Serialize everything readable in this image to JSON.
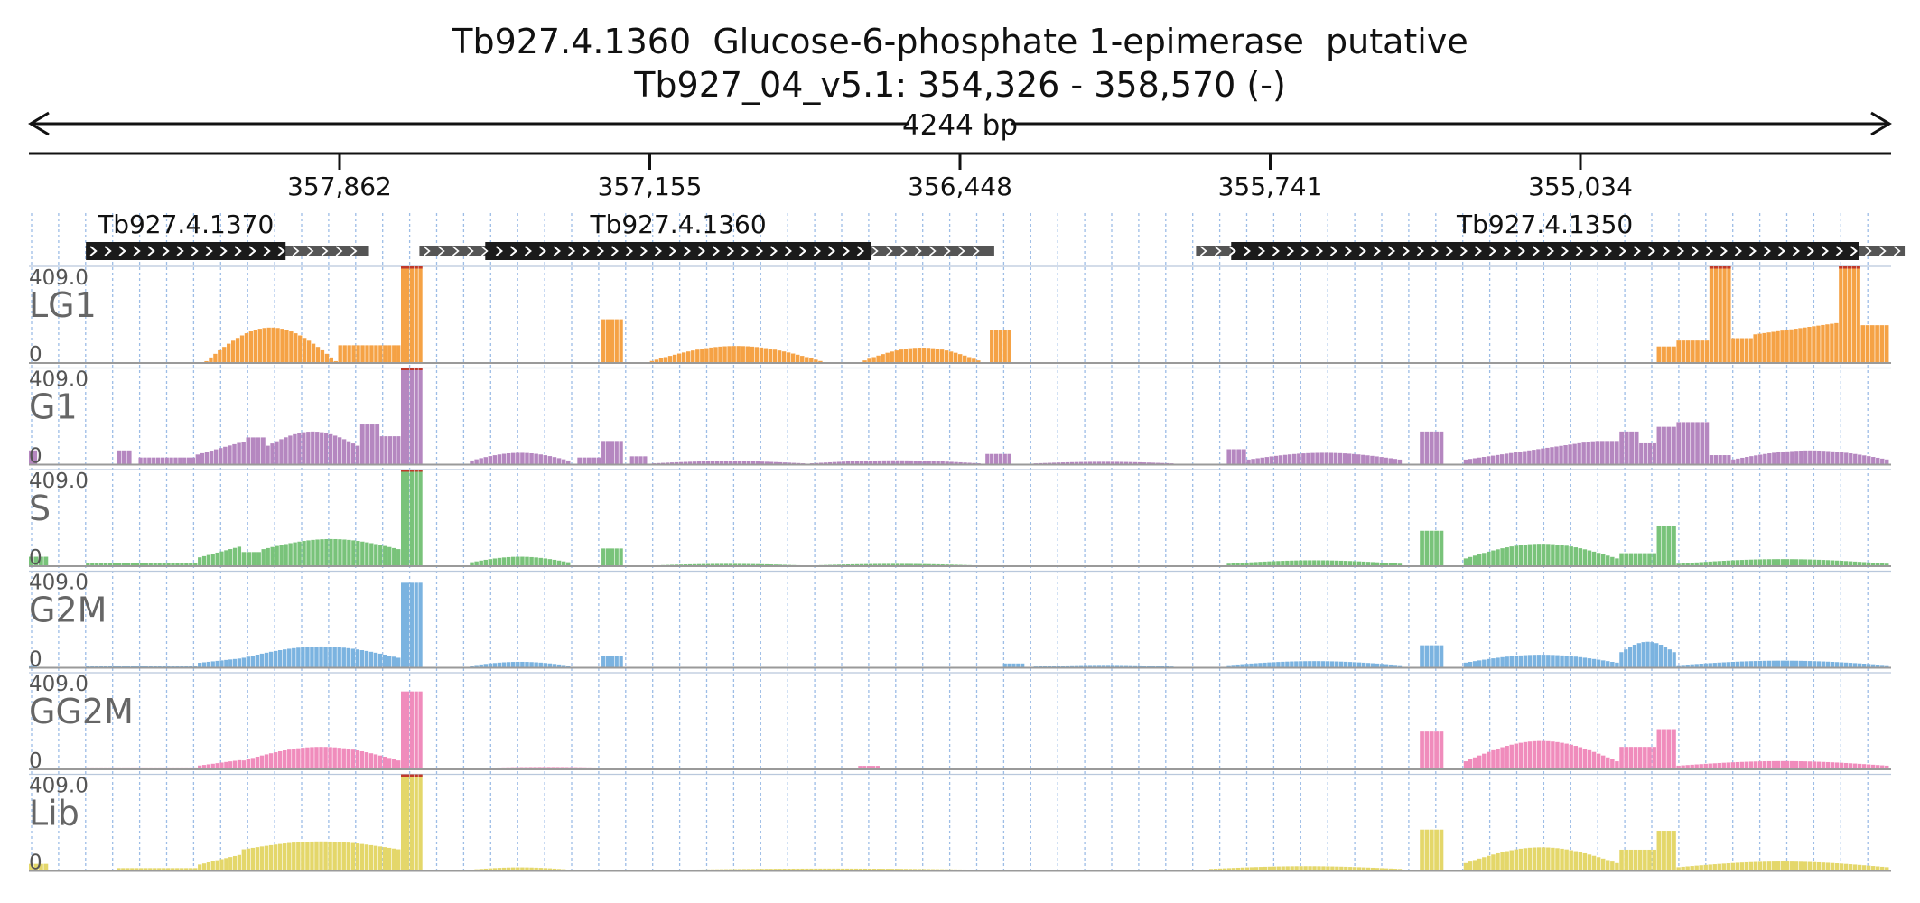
{
  "header": {
    "title": "Tb927.4.1360  Glucose-6-phosphate 1-epimerase  putative",
    "locus": "Tb927_04_v5.1: 354,326 - 358,570 (-)",
    "span_label": "4244 bp"
  },
  "ruler": {
    "ticks": [
      "357,862",
      "357,155",
      "356,448",
      "355,741",
      "355,034"
    ]
  },
  "genes": [
    {
      "name": "Tb927.4.1370",
      "utr_start": 358440,
      "cds_start": 358440,
      "cds_end": 357985,
      "utr_end": 357795
    },
    {
      "name": "Tb927.4.1360",
      "utr_start": 357680,
      "cds_start": 357530,
      "cds_end": 356650,
      "utr_end": 356370
    },
    {
      "name": "Tb927.4.1350",
      "utr_start": 355910,
      "cds_start": 355830,
      "cds_end": 354400,
      "utr_end": 354295
    }
  ],
  "chart_data": {
    "type": "bar",
    "x_range": [
      358570,
      354326
    ],
    "x_unit": "bp (reverse strand)",
    "y_max_label": "409.0",
    "y_min_label": "0",
    "ylim": [
      0,
      409
    ],
    "tracks": [
      {
        "name": "LG1",
        "color": "#f5a245",
        "segments": [
          {
            "x": [
              358170,
              357865
            ],
            "shape": "hump",
            "min": 0,
            "peak": 150
          },
          {
            "x": [
              357865,
              357722
            ],
            "shape": "flat",
            "value": 75
          },
          {
            "x": [
              357722,
              357672
            ],
            "shape": "flat",
            "value": 409
          },
          {
            "x": [
              357265,
              357215
            ],
            "shape": "flat",
            "value": 185
          },
          {
            "x": [
              357165,
              356750
            ],
            "shape": "hump",
            "min": 0,
            "peak": 72
          },
          {
            "x": [
              356680,
              356390
            ],
            "shape": "hump",
            "min": 0,
            "peak": 65
          },
          {
            "x": [
              356380,
              356330
            ],
            "shape": "flat",
            "value": 140
          },
          {
            "x": [
              354860,
              354815
            ],
            "shape": "flat",
            "value": 70
          },
          {
            "x": [
              354815,
              354740
            ],
            "shape": "flat",
            "value": 95
          },
          {
            "x": [
              354740,
              354690
            ],
            "shape": "flat",
            "value": 409
          },
          {
            "x": [
              354690,
              354640
            ],
            "shape": "flat",
            "value": 105
          },
          {
            "x": [
              354640,
              354445
            ],
            "shape": "ramp",
            "from": 120,
            "to": 170
          },
          {
            "x": [
              354445,
              354395
            ],
            "shape": "flat",
            "value": 409
          },
          {
            "x": [
              354395,
              354330
            ],
            "shape": "flat",
            "value": 160
          }
        ]
      },
      {
        "name": "G1",
        "color": "#b587c0",
        "segments": [
          {
            "x": [
              358570,
              358550
            ],
            "shape": "flat",
            "value": 60
          },
          {
            "x": [
              358370,
              358335
            ],
            "shape": "flat",
            "value": 60
          },
          {
            "x": [
              358320,
              358190
            ],
            "shape": "flat",
            "value": 30
          },
          {
            "x": [
              358190,
              358075
            ],
            "shape": "ramp",
            "from": 40,
            "to": 100
          },
          {
            "x": [
              358075,
              358030
            ],
            "shape": "flat",
            "value": 115
          },
          {
            "x": [
              358030,
              357815
            ],
            "shape": "hump",
            "min": 75,
            "peak": 140
          },
          {
            "x": [
              357815,
              357770
            ],
            "shape": "flat",
            "value": 170
          },
          {
            "x": [
              357770,
              357722
            ],
            "shape": "flat",
            "value": 120
          },
          {
            "x": [
              357722,
              357672
            ],
            "shape": "flat",
            "value": 409
          },
          {
            "x": [
              357565,
              357335
            ],
            "shape": "hump",
            "min": 15,
            "peak": 50
          },
          {
            "x": [
              357320,
              357265
            ],
            "shape": "flat",
            "value": 30
          },
          {
            "x": [
              357265,
              357215
            ],
            "shape": "flat",
            "value": 100
          },
          {
            "x": [
              357200,
              357160
            ],
            "shape": "flat",
            "value": 35
          },
          {
            "x": [
              357150,
              356800
            ],
            "shape": "hump",
            "min": 5,
            "peak": 15
          },
          {
            "x": [
              356790,
              356400
            ],
            "shape": "hump",
            "min": 5,
            "peak": 18
          },
          {
            "x": [
              356390,
              356330
            ],
            "shape": "flat",
            "value": 45
          },
          {
            "x": [
              356280,
              355960
            ],
            "shape": "hump",
            "min": 5,
            "peak": 12
          },
          {
            "x": [
              355840,
              355795
            ],
            "shape": "flat",
            "value": 65
          },
          {
            "x": [
              355795,
              355440
            ],
            "shape": "hump",
            "min": 20,
            "peak": 50
          },
          {
            "x": [
              355400,
              355345
            ],
            "shape": "flat",
            "value": 140
          },
          {
            "x": [
              355300,
              355000
            ],
            "shape": "ramp",
            "from": 20,
            "to": 100
          },
          {
            "x": [
              355000,
              354945
            ],
            "shape": "flat",
            "value": 100
          },
          {
            "x": [
              354945,
              354900
            ],
            "shape": "flat",
            "value": 140
          },
          {
            "x": [
              354900,
              354860
            ],
            "shape": "flat",
            "value": 90
          },
          {
            "x": [
              354860,
              354815
            ],
            "shape": "flat",
            "value": 160
          },
          {
            "x": [
              354815,
              354740
            ],
            "shape": "flat",
            "value": 180
          },
          {
            "x": [
              354740,
              354690
            ],
            "shape": "flat",
            "value": 40
          },
          {
            "x": [
              354690,
              354330
            ],
            "shape": "hump",
            "min": 20,
            "peak": 60
          }
        ]
      },
      {
        "name": "S",
        "color": "#79c37a",
        "segments": [
          {
            "x": [
              358570,
              358525
            ],
            "shape": "flat",
            "value": 40
          },
          {
            "x": [
              358440,
              358185
            ],
            "shape": "flat",
            "value": 12
          },
          {
            "x": [
              358185,
              358085
            ],
            "shape": "ramp",
            "from": 35,
            "to": 85
          },
          {
            "x": [
              358085,
              358040
            ],
            "shape": "flat",
            "value": 60
          },
          {
            "x": [
              358040,
              357722
            ],
            "shape": "hump",
            "min": 70,
            "peak": 115
          },
          {
            "x": [
              357722,
              357672
            ],
            "shape": "flat",
            "value": 409
          },
          {
            "x": [
              357565,
              357335
            ],
            "shape": "hump",
            "min": 15,
            "peak": 40
          },
          {
            "x": [
              357265,
              357215
            ],
            "shape": "flat",
            "value": 75
          },
          {
            "x": [
              357150,
              356800
            ],
            "shape": "hump",
            "min": 3,
            "peak": 10
          },
          {
            "x": [
              356790,
              356400
            ],
            "shape": "hump",
            "min": 3,
            "peak": 10
          },
          {
            "x": [
              355840,
              355440
            ],
            "shape": "hump",
            "min": 10,
            "peak": 25
          },
          {
            "x": [
              355400,
              355345
            ],
            "shape": "flat",
            "value": 150
          },
          {
            "x": [
              355300,
              354945
            ],
            "shape": "hump",
            "min": 30,
            "peak": 95
          },
          {
            "x": [
              354945,
              354860
            ],
            "shape": "flat",
            "value": 55
          },
          {
            "x": [
              354860,
              354815
            ],
            "shape": "flat",
            "value": 170
          },
          {
            "x": [
              354815,
              354330
            ],
            "shape": "hump",
            "min": 10,
            "peak": 30
          }
        ]
      },
      {
        "name": "G2M",
        "color": "#7bb3e0",
        "segments": [
          {
            "x": [
              358570,
              358550
            ],
            "shape": "flat",
            "value": 10
          },
          {
            "x": [
              358440,
              358185
            ],
            "shape": "flat",
            "value": 8
          },
          {
            "x": [
              358185,
              358085
            ],
            "shape": "ramp",
            "from": 20,
            "to": 40
          },
          {
            "x": [
              358085,
              357722
            ],
            "shape": "hump",
            "min": 40,
            "peak": 90
          },
          {
            "x": [
              357722,
              357672
            ],
            "shape": "flat",
            "value": 360
          },
          {
            "x": [
              357565,
              357335
            ],
            "shape": "hump",
            "min": 8,
            "peak": 25
          },
          {
            "x": [
              357265,
              357215
            ],
            "shape": "flat",
            "value": 50
          },
          {
            "x": [
              356350,
              356300
            ],
            "shape": "flat",
            "value": 18
          },
          {
            "x": [
              356280,
              355960
            ],
            "shape": "hump",
            "min": 5,
            "peak": 12
          },
          {
            "x": [
              355840,
              355440
            ],
            "shape": "hump",
            "min": 10,
            "peak": 28
          },
          {
            "x": [
              355400,
              355345
            ],
            "shape": "flat",
            "value": 95
          },
          {
            "x": [
              355300,
              354945
            ],
            "shape": "hump",
            "min": 20,
            "peak": 55
          },
          {
            "x": [
              354945,
              354815
            ],
            "shape": "hump",
            "min": 60,
            "peak": 110
          },
          {
            "x": [
              354815,
              354330
            ],
            "shape": "hump",
            "min": 10,
            "peak": 30
          }
        ]
      },
      {
        "name": "GG2M",
        "color": "#f08cbc",
        "segments": [
          {
            "x": [
              358570,
              358550
            ],
            "shape": "flat",
            "value": 5
          },
          {
            "x": [
              358440,
              358185
            ],
            "shape": "flat",
            "value": 8
          },
          {
            "x": [
              358185,
              358085
            ],
            "shape": "ramp",
            "from": 15,
            "to": 40
          },
          {
            "x": [
              358085,
              357722
            ],
            "shape": "hump",
            "min": 35,
            "peak": 95
          },
          {
            "x": [
              357722,
              357672
            ],
            "shape": "flat",
            "value": 330
          },
          {
            "x": [
              357565,
              357215
            ],
            "shape": "hump",
            "min": 5,
            "peak": 10
          },
          {
            "x": [
              356680,
              356630
            ],
            "shape": "flat",
            "value": 15
          },
          {
            "x": [
              355400,
              355345
            ],
            "shape": "flat",
            "value": 160
          },
          {
            "x": [
              355300,
              354945
            ],
            "shape": "hump",
            "min": 30,
            "peak": 120
          },
          {
            "x": [
              354945,
              354860
            ],
            "shape": "flat",
            "value": 95
          },
          {
            "x": [
              354860,
              354815
            ],
            "shape": "flat",
            "value": 170
          },
          {
            "x": [
              354815,
              354330
            ],
            "shape": "hump",
            "min": 15,
            "peak": 35
          }
        ]
      },
      {
        "name": "Lib",
        "color": "#e4d76a",
        "segments": [
          {
            "x": [
              358570,
              358525
            ],
            "shape": "flat",
            "value": 30
          },
          {
            "x": [
              358370,
              358185
            ],
            "shape": "flat",
            "value": 12
          },
          {
            "x": [
              358185,
              358085
            ],
            "shape": "ramp",
            "from": 25,
            "to": 70
          },
          {
            "x": [
              358085,
              357722
            ],
            "shape": "hump",
            "min": 90,
            "peak": 125
          },
          {
            "x": [
              357722,
              357672
            ],
            "shape": "flat",
            "value": 409
          },
          {
            "x": [
              357565,
              357335
            ],
            "shape": "hump",
            "min": 5,
            "peak": 15
          },
          {
            "x": [
              357150,
              356330
            ],
            "shape": "hump",
            "min": 3,
            "peak": 10
          },
          {
            "x": [
              355880,
              355440
            ],
            "shape": "hump",
            "min": 8,
            "peak": 20
          },
          {
            "x": [
              355400,
              355345
            ],
            "shape": "flat",
            "value": 175
          },
          {
            "x": [
              355300,
              354945
            ],
            "shape": "hump",
            "min": 30,
            "peak": 100
          },
          {
            "x": [
              354945,
              354860
            ],
            "shape": "flat",
            "value": 90
          },
          {
            "x": [
              354860,
              354815
            ],
            "shape": "flat",
            "value": 170
          },
          {
            "x": [
              354815,
              354330
            ],
            "shape": "hump",
            "min": 15,
            "peak": 40
          }
        ]
      }
    ]
  }
}
